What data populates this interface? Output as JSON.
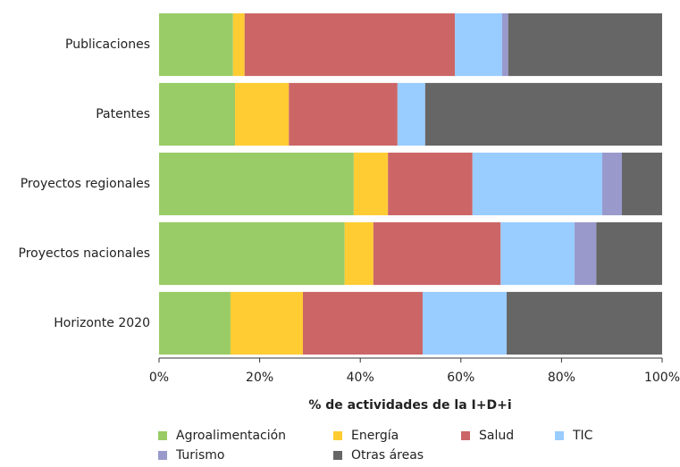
{
  "chart_data": {
    "type": "stacked-barh",
    "categories": [
      "Publicaciones",
      "Patentes",
      "Proyectos regionales",
      "Proyectos nacionales",
      "Horizonte 2020"
    ],
    "series": [
      {
        "name": "Agroalimentación",
        "color": "#99cc66",
        "values": [
          14.7,
          15.1,
          38.7,
          36.9,
          14.2
        ]
      },
      {
        "name": "Energía",
        "color": "#ffcc33",
        "values": [
          2.3,
          10.7,
          6.8,
          5.7,
          14.4
        ]
      },
      {
        "name": "Salud",
        "color": "#cc6666",
        "values": [
          41.8,
          21.6,
          16.8,
          25.3,
          23.8
        ]
      },
      {
        "name": "TIC",
        "color": "#99ccff",
        "values": [
          9.4,
          5.5,
          25.8,
          14.7,
          16.7
        ]
      },
      {
        "name": "Turismo",
        "color": "#9999cc",
        "values": [
          1.2,
          0,
          3.9,
          4.3,
          0
        ]
      },
      {
        "name": "Otras áreas",
        "color": "#666666",
        "values": [
          30.6,
          47.1,
          8.0,
          13.1,
          30.9
        ]
      }
    ],
    "xlabel": "% de actividades de la I+D+i",
    "xlim": [
      0,
      100
    ],
    "xticks": [
      {
        "value": 0,
        "label": "0%"
      },
      {
        "value": 20,
        "label": "20%"
      },
      {
        "value": 40,
        "label": "40%"
      },
      {
        "value": 60,
        "label": "60%"
      },
      {
        "value": 80,
        "label": "80%"
      },
      {
        "value": 100,
        "label": "100%"
      }
    ]
  }
}
